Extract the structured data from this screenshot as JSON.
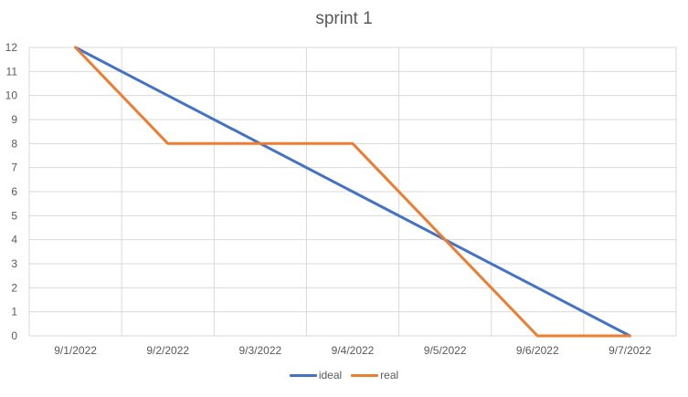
{
  "chart_data": {
    "type": "line",
    "title": "sprint 1",
    "categories": [
      "9/1/2022",
      "9/2/2022",
      "9/3/2022",
      "9/4/2022",
      "9/5/2022",
      "9/6/2022",
      "9/7/2022"
    ],
    "series": [
      {
        "name": "ideal",
        "values": [
          12,
          10,
          8,
          6,
          4,
          2,
          0
        ],
        "color": "#4472C4"
      },
      {
        "name": "real",
        "values": [
          12,
          8,
          8,
          8,
          4,
          0,
          0
        ],
        "color": "#ED7D31"
      }
    ],
    "ylim": [
      0,
      12
    ],
    "yticks": [
      "0",
      "1",
      "2",
      "3",
      "4",
      "5",
      "6",
      "7",
      "8",
      "9",
      "10",
      "11",
      "12"
    ],
    "grid": true,
    "legend": "bottom"
  }
}
